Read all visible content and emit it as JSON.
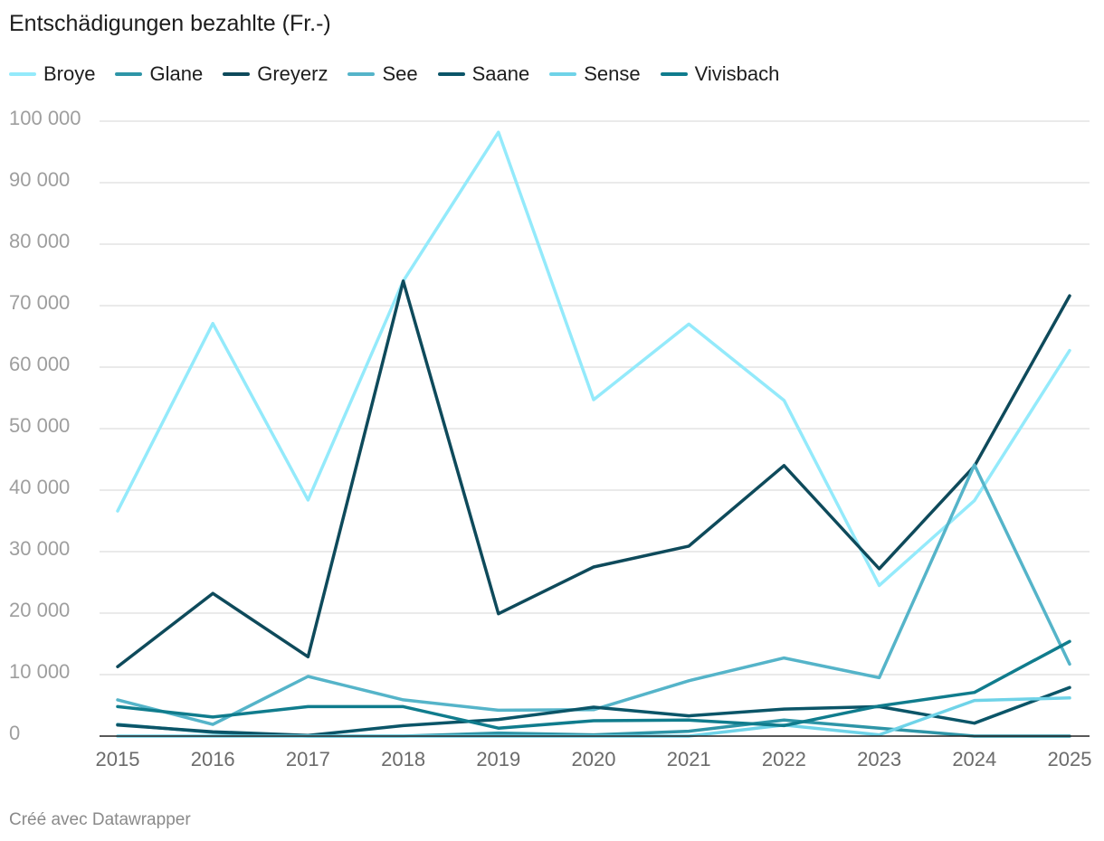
{
  "chart_data": {
    "type": "line",
    "title": "Entschädigungen bezahlte (Fr.-)",
    "xlabel": "",
    "ylabel": "",
    "x": [
      2015,
      2016,
      2017,
      2018,
      2019,
      2020,
      2021,
      2022,
      2023,
      2024,
      2025
    ],
    "ylim": [
      0,
      100000
    ],
    "yticks": [
      0,
      10000,
      20000,
      30000,
      40000,
      50000,
      60000,
      70000,
      80000,
      90000,
      100000
    ],
    "ytick_labels": [
      "0",
      "10 000",
      "20 000",
      "30 000",
      "40 000",
      "50 000",
      "60 000",
      "70 000",
      "80 000",
      "90 000",
      "100 000"
    ],
    "grid": true,
    "legend_position": "top-left",
    "series": [
      {
        "name": "Broye",
        "color": "#94eafb",
        "values": [
          36600,
          67100,
          38400,
          74000,
          98200,
          54700,
          67000,
          54600,
          24500,
          38300,
          62700
        ]
      },
      {
        "name": "Glane",
        "color": "#2e95a7",
        "values": [
          1900,
          600,
          0,
          0,
          500,
          200,
          800,
          2600,
          1300,
          0,
          0
        ]
      },
      {
        "name": "Greyerz",
        "color": "#0e4a5b",
        "values": [
          11300,
          23200,
          12900,
          74000,
          19900,
          27500,
          30900,
          44000,
          27200,
          43900,
          71600
        ]
      },
      {
        "name": "See",
        "color": "#55b4c9",
        "values": [
          5900,
          1900,
          9700,
          5900,
          4200,
          4300,
          9000,
          12700,
          9500,
          44100,
          11700
        ]
      },
      {
        "name": "Saane",
        "color": "#0b5568",
        "values": [
          1800,
          700,
          100,
          1700,
          2700,
          4700,
          3300,
          4400,
          4800,
          2100,
          7900
        ]
      },
      {
        "name": "Sense",
        "color": "#6fd3e8",
        "values": [
          0,
          0,
          0,
          0,
          0,
          0,
          0,
          1800,
          200,
          5800,
          6200
        ]
      },
      {
        "name": "Vivisbach",
        "color": "#107c8d",
        "values": [
          4800,
          3100,
          4800,
          4800,
          1300,
          2500,
          2600,
          1700,
          4900,
          7100,
          15400
        ]
      }
    ]
  },
  "credit": "Créé avec Datawrapper"
}
